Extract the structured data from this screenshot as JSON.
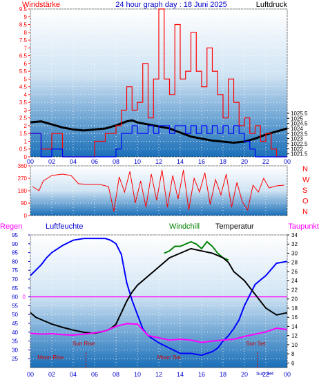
{
  "chart_data": [
    {
      "id": "panel1",
      "type": "line",
      "title": "24 hour graph day : 18 Juni 2025",
      "left_axis_label": "Windstärke",
      "right_axis_label": "Luftdruck",
      "x_ticks": [
        "00",
        "02",
        "04",
        "06",
        "08",
        "10",
        "12",
        "14",
        "16",
        "18",
        "20",
        "22",
        "00"
      ],
      "left_ylim": [
        0,
        9.5
      ],
      "left_ticks": [
        "0",
        "0.5",
        "1",
        "1.5",
        "2",
        "2.5",
        "3",
        "3.5",
        "4",
        "4.5",
        "5",
        "5.5",
        "6",
        "6.5",
        "7",
        "7.5",
        "8",
        "8.5",
        "9",
        "9.5"
      ],
      "right_ylim": [
        1021.2,
        1035.8
      ],
      "right_ticks": [
        "1021.5",
        "1022",
        "1022.5",
        "1023",
        "1023.5",
        "1024",
        "1024.5",
        "1025",
        "1025.5"
      ],
      "series": [
        {
          "key": "pressure",
          "color": "#000000",
          "x": [
            0,
            1,
            2,
            3,
            4,
            5,
            6,
            7,
            8,
            9,
            9.5,
            10,
            11,
            12,
            13,
            14,
            15,
            16,
            17,
            18,
            19,
            20,
            21,
            22,
            23,
            24
          ],
          "y": [
            1024.6,
            1024.7,
            1024.4,
            1024.1,
            1023.9,
            1023.8,
            1023.9,
            1024.0,
            1024.3,
            1024.7,
            1024.8,
            1024.6,
            1024.4,
            1024.2,
            1024.0,
            1023.6,
            1023.2,
            1023.0,
            1022.8,
            1022.7,
            1022.6,
            1022.7,
            1023.0,
            1023.4,
            1023.7,
            1024.0
          ]
        },
        {
          "key": "wind_gust",
          "color": "#ff0000",
          "x": [
            0,
            1,
            2,
            3,
            4,
            5,
            6,
            7,
            8,
            8.5,
            9,
            9.5,
            10,
            10.5,
            11,
            11.5,
            12,
            12.5,
            13,
            13.5,
            14,
            14.5,
            15,
            15.5,
            16,
            16.5,
            17,
            17.5,
            18,
            18.5,
            19,
            19.5,
            20,
            20.5,
            21,
            21.5,
            22,
            22.5,
            23,
            24
          ],
          "y": [
            1.5,
            0.5,
            1.5,
            0,
            0,
            0,
            1,
            1.5,
            2,
            3,
            4.5,
            3,
            3.5,
            6,
            2.5,
            5,
            9.5,
            5,
            4,
            8.5,
            5,
            5.5,
            8,
            5.5,
            4.5,
            7,
            5.5,
            4,
            2.5,
            5,
            3.5,
            2,
            2.5,
            1.5,
            2,
            1,
            1.5,
            0.5,
            0,
            0
          ]
        },
        {
          "key": "wind_avg",
          "color": "#0000ff",
          "x": [
            0,
            1,
            2,
            3,
            4,
            5,
            6,
            7,
            8,
            8.5,
            9,
            9.5,
            10,
            10.5,
            11,
            11.5,
            12,
            12.5,
            13,
            13.5,
            14,
            14.5,
            15,
            15.5,
            16,
            16.5,
            17,
            17.5,
            18,
            18.5,
            19,
            19.5,
            20,
            20.5,
            21,
            22,
            23,
            24
          ],
          "y": [
            1.5,
            0,
            0.5,
            0,
            0,
            0,
            0,
            0,
            0.5,
            1.5,
            1.5,
            2,
            1.5,
            1.5,
            2,
            1.5,
            2,
            2,
            1.5,
            2,
            2,
            1.5,
            2,
            1.5,
            2,
            1.5,
            2,
            1.5,
            2,
            1.5,
            2,
            1.5,
            1,
            0.5,
            0,
            0,
            0,
            0
          ]
        }
      ]
    },
    {
      "id": "panel2",
      "type": "line",
      "title": "",
      "left_ylim": [
        0,
        360
      ],
      "left_ticks": [
        "0",
        "90",
        "180",
        "270",
        "360"
      ],
      "right_labels": [
        "N",
        "W",
        "S",
        "O",
        "N"
      ],
      "series": [
        {
          "key": "wind_dir",
          "color": "#ff0000",
          "x": [
            0.2,
            0.8,
            1.2,
            2,
            3,
            3.8,
            4.5,
            5.5,
            6.5,
            7.3,
            7.8,
            8.3,
            8.8,
            9.3,
            9.8,
            10.3,
            10.8,
            11.3,
            11.8,
            12.3,
            12.8,
            13.3,
            13.8,
            14.3,
            14.8,
            15.3,
            15.8,
            16.3,
            16.8,
            17.3,
            17.8,
            18.3,
            18.8,
            19.3,
            19.8,
            20.3,
            20.8,
            21.3,
            21.8,
            22.3,
            23,
            23.7
          ],
          "y": [
            210,
            180,
            250,
            290,
            300,
            290,
            230,
            225,
            225,
            210,
            30,
            280,
            170,
            320,
            90,
            250,
            60,
            300,
            110,
            330,
            60,
            290,
            120,
            330,
            40,
            270,
            170,
            310,
            80,
            260,
            150,
            300,
            60,
            240,
            100,
            40,
            220,
            170,
            270,
            200,
            215,
            220
          ]
        }
      ]
    },
    {
      "id": "panel3",
      "type": "line",
      "title": "",
      "labels_top": [
        "Regen",
        "Luftfeuchte",
        "Windchill",
        "Temperatur",
        "Taupunkt"
      ],
      "left_ylim": [
        20,
        95
      ],
      "left_ticks": [
        "25",
        "30",
        "35",
        "40",
        "45",
        "50",
        "55",
        "60",
        "65",
        "70",
        "75",
        "80",
        "85",
        "90",
        "95"
      ],
      "right_ylim": [
        5,
        34
      ],
      "right_ticks": [
        "6",
        "8",
        "10",
        "12",
        "14",
        "16",
        "18",
        "20",
        "22",
        "24",
        "26",
        "28",
        "30",
        "32",
        "34"
      ],
      "rain_tick": "0",
      "rain_value": 0,
      "annotations": {
        "sun_rise": "Sun Rise",
        "sun_set": "Sun Set",
        "moon_rise": "Moon Rise",
        "moon_set": "Moon Set",
        "sun_rise_hour": 5.1,
        "sun_set_hour": 21.3,
        "moon_rise_hour": 5.3,
        "moon_set_hour": 12.5,
        "dashed_a": 5.2,
        "dashed_b": 21.2
      },
      "series": [
        {
          "key": "humidity",
          "axis": "left",
          "color": "#0000ff",
          "x": [
            0,
            0.5,
            1,
            1.5,
            2,
            3,
            4,
            5,
            6,
            7,
            7.5,
            8,
            8.5,
            9,
            9.5,
            10,
            10.5,
            11,
            11.5,
            12,
            13,
            14,
            15,
            16,
            17,
            17.5,
            18,
            18.5,
            19,
            19.5,
            20,
            21,
            22,
            23,
            24
          ],
          "y": [
            72,
            75,
            78,
            82,
            85,
            89,
            92,
            93,
            93,
            93,
            92,
            90,
            84,
            68,
            58,
            50,
            42,
            38,
            36,
            34,
            31,
            28,
            28,
            27,
            29,
            31,
            35,
            38,
            42,
            47,
            55,
            67,
            72,
            79,
            80
          ]
        },
        {
          "key": "windchill",
          "axis": "right",
          "color": "#008000",
          "x": [
            12.5,
            13,
            13.5,
            14,
            14.5,
            15,
            15.5,
            16,
            16.5,
            17,
            17.5,
            18,
            18.5
          ],
          "y": [
            30,
            30.5,
            31.5,
            31.5,
            32,
            32.5,
            32,
            31,
            32.5,
            31.5,
            30,
            29,
            28.5
          ]
        },
        {
          "key": "temperature",
          "axis": "right",
          "color": "#000000",
          "x": [
            0,
            0.5,
            1,
            2,
            3,
            4,
            5,
            6,
            7,
            7.5,
            8,
            8.5,
            9,
            9.5,
            10,
            11,
            12,
            13,
            14,
            15,
            16,
            17,
            18,
            18.5,
            19,
            20,
            21,
            22,
            23,
            24
          ],
          "y": [
            17,
            16,
            15.5,
            14.5,
            13.8,
            13.2,
            12.7,
            12.5,
            13,
            13.5,
            14.5,
            17,
            19.5,
            21.5,
            23,
            25,
            27,
            29,
            30,
            31,
            30.5,
            30,
            29,
            28,
            26,
            24,
            21,
            18,
            16.5,
            17
          ]
        },
        {
          "key": "dewpoint",
          "axis": "right",
          "color": "#ff00ff",
          "x": [
            0,
            1,
            2,
            3,
            4,
            5,
            6,
            7,
            8,
            9,
            10,
            11,
            12,
            13,
            14,
            15,
            16,
            17,
            18,
            19,
            20,
            21,
            22,
            23,
            24
          ],
          "y": [
            12.5,
            12.3,
            12.4,
            12.2,
            12.1,
            12.3,
            12.6,
            13,
            14,
            14.6,
            14.5,
            12,
            11.5,
            11,
            11.2,
            11,
            10.5,
            10.8,
            11,
            11.2,
            11.8,
            12.3,
            12.8,
            13.6,
            13.3
          ]
        }
      ]
    }
  ]
}
